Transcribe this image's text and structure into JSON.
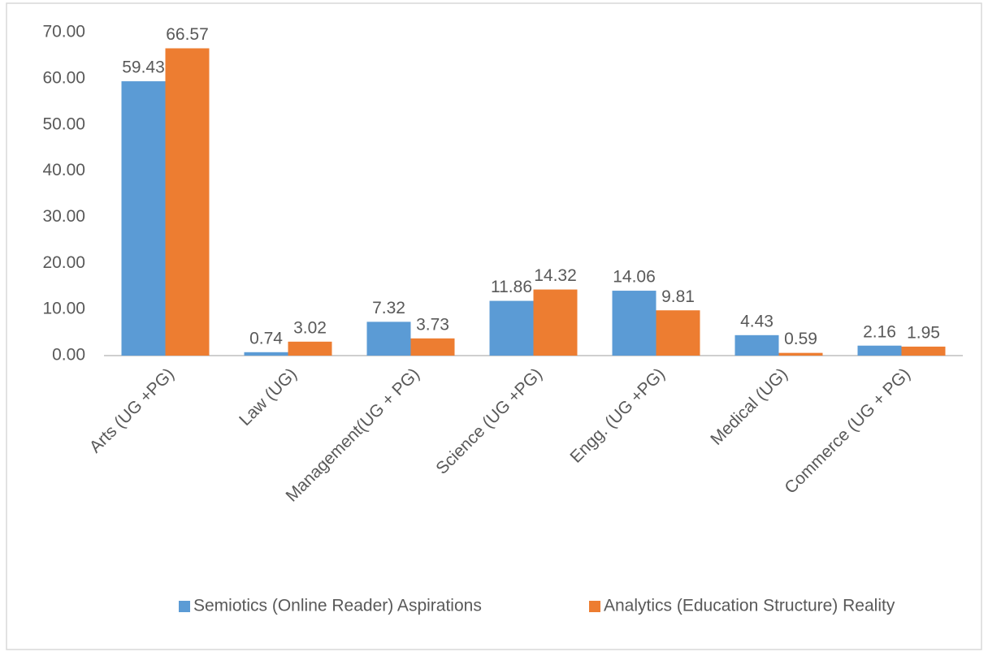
{
  "chart_data": {
    "type": "bar",
    "categories": [
      "Arts (UG +PG)",
      "Law (UG)",
      "Management(UG + PG)",
      "Science (UG +PG)",
      "Engg. (UG +PG)",
      "Medical (UG)",
      "Commerce (UG + PG)"
    ],
    "series": [
      {
        "name": "Semiotics (Online Reader) Aspirations",
        "color": "#5b9bd5",
        "values": [
          59.43,
          0.74,
          7.32,
          11.86,
          14.06,
          4.43,
          2.16
        ]
      },
      {
        "name": "Analytics (Education Structure) Reality",
        "color": "#ed7d31",
        "values": [
          66.57,
          3.02,
          3.73,
          14.32,
          9.81,
          0.59,
          1.95
        ]
      }
    ],
    "ylim": [
      0,
      70
    ],
    "yticks": [
      {
        "value": 0,
        "label": "0.00"
      },
      {
        "value": 10,
        "label": "10.00"
      },
      {
        "value": 20,
        "label": "20.00"
      },
      {
        "value": 30,
        "label": "30.00"
      },
      {
        "value": 40,
        "label": "40.00"
      },
      {
        "value": 50,
        "label": "50.00"
      },
      {
        "value": 60,
        "label": "60.00"
      },
      {
        "value": 70,
        "label": "70.00"
      }
    ],
    "grid": false,
    "legend": "bottom"
  }
}
